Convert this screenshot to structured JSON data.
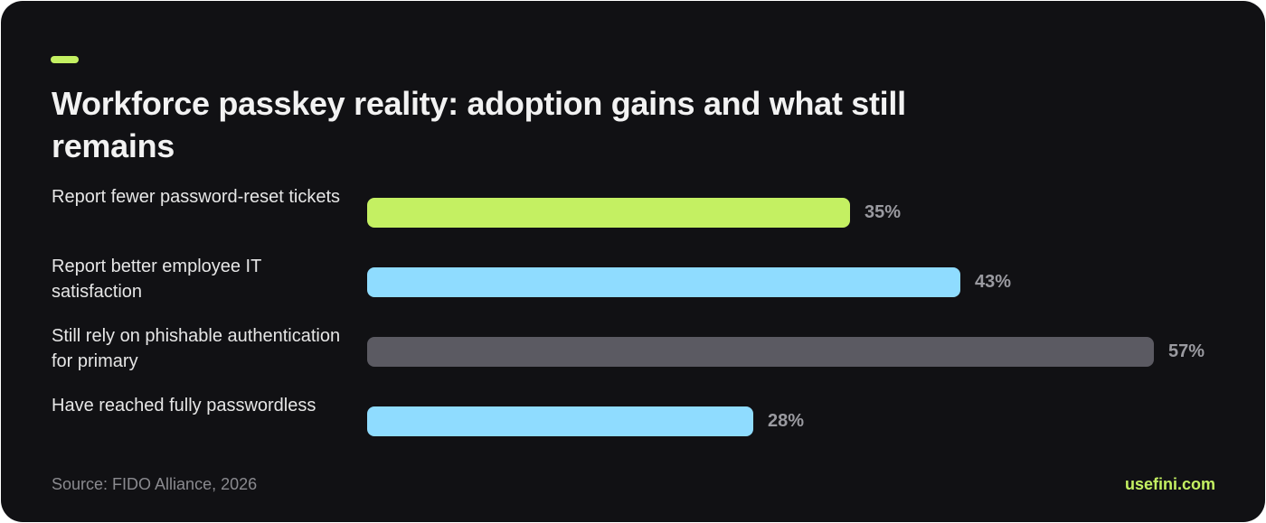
{
  "title": "Workforce passkey reality: adoption gains and what still remains",
  "source": "Source: FIDO Alliance, 2026",
  "brand": "usefini.com",
  "colors": {
    "background": "#111114",
    "accent": "#c4f062",
    "lime": "#c4f062",
    "sky": "#8fdcff",
    "gray": "#5b5a62"
  },
  "chart_data": {
    "type": "bar",
    "orientation": "horizontal",
    "title": "Workforce passkey reality: adoption gains and what still remains",
    "categories": [
      "Report fewer password-reset tickets",
      "Report better employee IT satisfaction",
      "Still rely on phishable authentication for primary",
      "Have reached fully passwordless"
    ],
    "values": [
      35,
      43,
      57,
      28
    ],
    "value_labels": [
      "35%",
      "43%",
      "57%",
      "28%"
    ],
    "bar_colors": [
      "#c4f062",
      "#8fdcff",
      "#5b5a62",
      "#8fdcff"
    ],
    "xlim": [
      0,
      57
    ],
    "grid": false,
    "legend": "none"
  }
}
